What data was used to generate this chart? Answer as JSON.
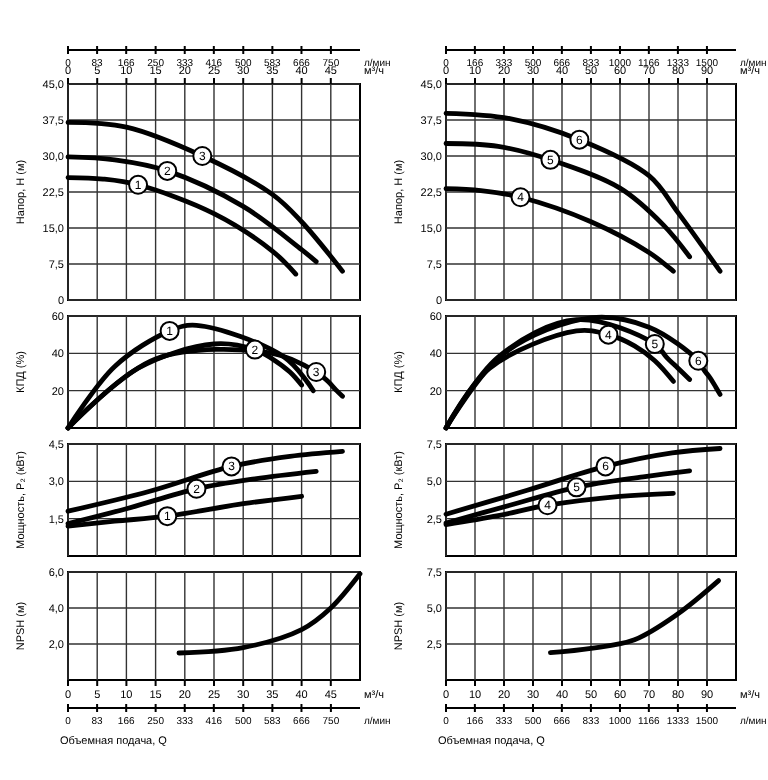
{
  "chart_data": [
    {
      "type": "line",
      "ylabel": "Напор, H (м)",
      "xlabel": "м³/ч",
      "x2label": "л/мин",
      "xlim": [
        0,
        50
      ],
      "xticks": [
        0,
        5,
        10,
        15,
        20,
        25,
        30,
        35,
        40,
        45
      ],
      "x2lim": [
        0,
        833
      ],
      "x2ticks": [
        0,
        83,
        166,
        250,
        333,
        416,
        500,
        583,
        666,
        750
      ],
      "ylim": [
        0,
        45
      ],
      "yticks": [
        0,
        {
          "value": 7.5,
          "label": "7,5"
        },
        {
          "value": 15,
          "label": "15,0"
        },
        {
          "value": 22.5,
          "label": "22,5"
        },
        {
          "value": 30,
          "label": "30,0"
        },
        {
          "value": 37.5,
          "label": "37,5"
        },
        {
          "value": 45,
          "label": "45,0"
        }
      ],
      "grid": true,
      "series": [
        {
          "name": "1",
          "color": "#000000",
          "x": [
            0,
            6,
            12,
            25,
            35,
            39
          ],
          "values": [
            25.5,
            25.2,
            24,
            18,
            10.2,
            5.4
          ]
        },
        {
          "name": "2",
          "color": "#000000",
          "x": [
            0,
            8,
            17,
            30,
            40,
            42.5
          ],
          "values": [
            29.8,
            29.2,
            26.9,
            19.5,
            10.5,
            8
          ]
        },
        {
          "name": "3",
          "color": "#000000",
          "x": [
            0,
            10,
            23,
            35,
            40,
            47
          ],
          "values": [
            37,
            36,
            30,
            22,
            16.3,
            6
          ]
        }
      ]
    },
    {
      "type": "line",
      "ylabel": "КПД (%)",
      "xlim": [
        0,
        50
      ],
      "xticks": [
        0,
        5,
        10,
        15,
        20,
        25,
        30,
        35,
        40,
        45
      ],
      "ylim": [
        0,
        60
      ],
      "yticks": [
        20,
        40,
        60
      ],
      "tick_labels": "y",
      "grid": true,
      "series": [
        {
          "name": "1",
          "color": "#000000",
          "x": [
            0,
            8,
            17.4,
            22,
            37,
            42
          ],
          "values": [
            0,
            33,
            52,
            55,
            38,
            20
          ]
        },
        {
          "name": "2",
          "color": "#000000",
          "x": [
            0,
            12,
            25,
            32,
            35,
            38,
            40
          ],
          "values": [
            0,
            32,
            45,
            42,
            37,
            30,
            23
          ]
        },
        {
          "name": "3",
          "color": "#000000",
          "x": [
            0,
            15,
            35,
            42.5,
            44.5,
            46,
            47
          ],
          "values": [
            0,
            37,
            40,
            30,
            25,
            20,
            17
          ]
        }
      ]
    },
    {
      "type": "line",
      "ylabel": "Мощность, P₂ (кВт)",
      "xlim": [
        0,
        50
      ],
      "xticks": [
        0,
        5,
        10,
        15,
        20,
        25,
        30,
        35,
        40,
        45
      ],
      "ylim": [
        0,
        4.5
      ],
      "yticks": [
        {
          "value": 1.5,
          "label": "1,5"
        },
        {
          "value": 3,
          "label": "3,0"
        },
        {
          "value": 4.5,
          "label": "4,5"
        }
      ],
      "tick_labels": "y",
      "grid": true,
      "series": [
        {
          "name": "1",
          "color": "#000000",
          "x": [
            0,
            8,
            17,
            30,
            40
          ],
          "values": [
            1.2,
            1.4,
            1.6,
            2.1,
            2.4
          ]
        },
        {
          "name": "2",
          "color": "#000000",
          "x": [
            0,
            10,
            22,
            32,
            42.5
          ],
          "values": [
            1.3,
            1.9,
            2.7,
            3.1,
            3.4
          ]
        },
        {
          "name": "3",
          "color": "#000000",
          "x": [
            0,
            14,
            28,
            38,
            47
          ],
          "values": [
            1.8,
            2.6,
            3.6,
            4.0,
            4.2
          ]
        }
      ]
    },
    {
      "type": "line",
      "ylabel": "NPSH (м)",
      "xlabel": "м³/ч",
      "x2label": "л/мин",
      "annotations": [
        "Объемная подача, Q"
      ],
      "xlim": [
        0,
        50
      ],
      "xticks": [
        0,
        5,
        10,
        15,
        20,
        25,
        30,
        35,
        40,
        45
      ],
      "x2lim": [
        0,
        833
      ],
      "x2ticks": [
        0,
        83,
        166,
        250,
        333,
        416,
        500,
        583,
        666,
        750
      ],
      "ylim": [
        0,
        6
      ],
      "yticks": [
        {
          "value": 2,
          "label": "2,0"
        },
        {
          "value": 4,
          "label": "4,0"
        },
        {
          "value": 6,
          "label": "6,0"
        }
      ],
      "grid": true,
      "series": [
        {
          "color": "#000000",
          "x": [
            19,
            30,
            40,
            45,
            50
          ],
          "values": [
            1.5,
            1.8,
            2.8,
            4,
            5.9
          ]
        }
      ]
    },
    {
      "type": "line",
      "ylabel": "Напор, H (м)",
      "xlabel": "м³/ч",
      "x2label": "л/мин",
      "xlim": [
        0,
        100
      ],
      "xticks": [
        0,
        10,
        20,
        30,
        40,
        50,
        60,
        70,
        80,
        90
      ],
      "x2lim": [
        0,
        1667
      ],
      "x2ticks": [
        0,
        166,
        333,
        500,
        666,
        833,
        1000,
        1166,
        1333,
        1500
      ],
      "ylim": [
        0,
        45
      ],
      "yticks": [
        0,
        {
          "value": 7.5,
          "label": "7,5"
        },
        {
          "value": 15,
          "label": "15,0"
        },
        {
          "value": 22.5,
          "label": "22,5"
        },
        {
          "value": 30,
          "label": "30,0"
        },
        {
          "value": 37.5,
          "label": "37,5"
        },
        {
          "value": 45,
          "label": "45,0"
        }
      ],
      "grid": true,
      "series": [
        {
          "name": "4",
          "color": "#000000",
          "x": [
            0,
            12,
            25.7,
            50,
            70,
            78.4
          ],
          "values": [
            23.2,
            22.8,
            21.4,
            16.3,
            9.9,
            6
          ]
        },
        {
          "name": "5",
          "color": "#000000",
          "x": [
            0,
            18,
            36,
            60,
            75,
            84
          ],
          "values": [
            32.6,
            32,
            29.2,
            23.3,
            15.6,
            9
          ]
        },
        {
          "name": "6",
          "color": "#000000",
          "x": [
            0,
            22,
            46,
            70,
            80,
            94.5
          ],
          "values": [
            38.9,
            37.8,
            33.4,
            25.9,
            18.2,
            6
          ]
        }
      ]
    },
    {
      "type": "line",
      "ylabel": "КПД (%)",
      "xlim": [
        0,
        100
      ],
      "xticks": [
        0,
        10,
        20,
        30,
        40,
        50,
        60,
        70,
        80,
        90
      ],
      "ylim": [
        0,
        60
      ],
      "yticks": [
        20,
        40,
        60
      ],
      "tick_labels": "y",
      "grid": true,
      "series": [
        {
          "name": "4",
          "color": "#000000",
          "x": [
            0,
            15,
            45,
            56,
            65,
            72,
            78.4
          ],
          "values": [
            0,
            32,
            52,
            50,
            44,
            36,
            25
          ]
        },
        {
          "name": "5",
          "color": "#000000",
          "x": [
            0,
            18,
            45,
            72,
            76,
            80,
            84
          ],
          "values": [
            0,
            38,
            58,
            45,
            38,
            32,
            26
          ]
        },
        {
          "name": "6",
          "color": "#000000",
          "x": [
            0,
            20,
            50,
            70,
            87,
            89,
            91,
            93,
            94.5
          ],
          "values": [
            0,
            40,
            59,
            54,
            36,
            31,
            27,
            22,
            18
          ]
        }
      ]
    },
    {
      "type": "line",
      "ylabel": "Мощность, P₂ (кВт)",
      "xlim": [
        0,
        100
      ],
      "xticks": [
        0,
        10,
        20,
        30,
        40,
        50,
        60,
        70,
        80,
        90
      ],
      "ylim": [
        0,
        7.5
      ],
      "yticks": [
        {
          "value": 2.5,
          "label": "2,5"
        },
        {
          "value": 5,
          "label": "5,0"
        },
        {
          "value": 7.5,
          "label": "7,5"
        }
      ],
      "tick_labels": "y",
      "grid": true,
      "series": [
        {
          "name": "4",
          "color": "#000000",
          "x": [
            0,
            18,
            35,
            60,
            78.4
          ],
          "values": [
            2.1,
            2.7,
            3.4,
            4,
            4.2
          ]
        },
        {
          "name": "5",
          "color": "#000000",
          "x": [
            0,
            22,
            45,
            68,
            84
          ],
          "values": [
            2.2,
            3.4,
            4.6,
            5.3,
            5.7
          ]
        },
        {
          "name": "6",
          "color": "#000000",
          "x": [
            0,
            28,
            55,
            78,
            94.5
          ],
          "values": [
            2.8,
            4.4,
            6,
            6.9,
            7.2
          ]
        }
      ]
    },
    {
      "type": "line",
      "ylabel": "NPSH (м)",
      "xlabel": "м³/ч",
      "x2label": "л/мин",
      "annotations": [
        "Объемная подача, Q"
      ],
      "xlim": [
        0,
        100
      ],
      "xticks": [
        0,
        10,
        20,
        30,
        40,
        50,
        60,
        70,
        80,
        90
      ],
      "x2lim": [
        0,
        1667
      ],
      "x2ticks": [
        0,
        166,
        333,
        500,
        666,
        833,
        1000,
        1166,
        1333,
        1500
      ],
      "ylim": [
        0,
        7.5
      ],
      "yticks": [
        {
          "value": 2.5,
          "label": "2,5"
        },
        {
          "value": 5,
          "label": "5,0"
        },
        {
          "value": 7.5,
          "label": "7,5"
        }
      ],
      "grid": true,
      "series": [
        {
          "color": "#000000",
          "x": [
            36,
            50,
            65,
            80,
            94
          ],
          "values": [
            1.9,
            2.2,
            2.8,
            4.6,
            6.9
          ]
        }
      ]
    }
  ]
}
